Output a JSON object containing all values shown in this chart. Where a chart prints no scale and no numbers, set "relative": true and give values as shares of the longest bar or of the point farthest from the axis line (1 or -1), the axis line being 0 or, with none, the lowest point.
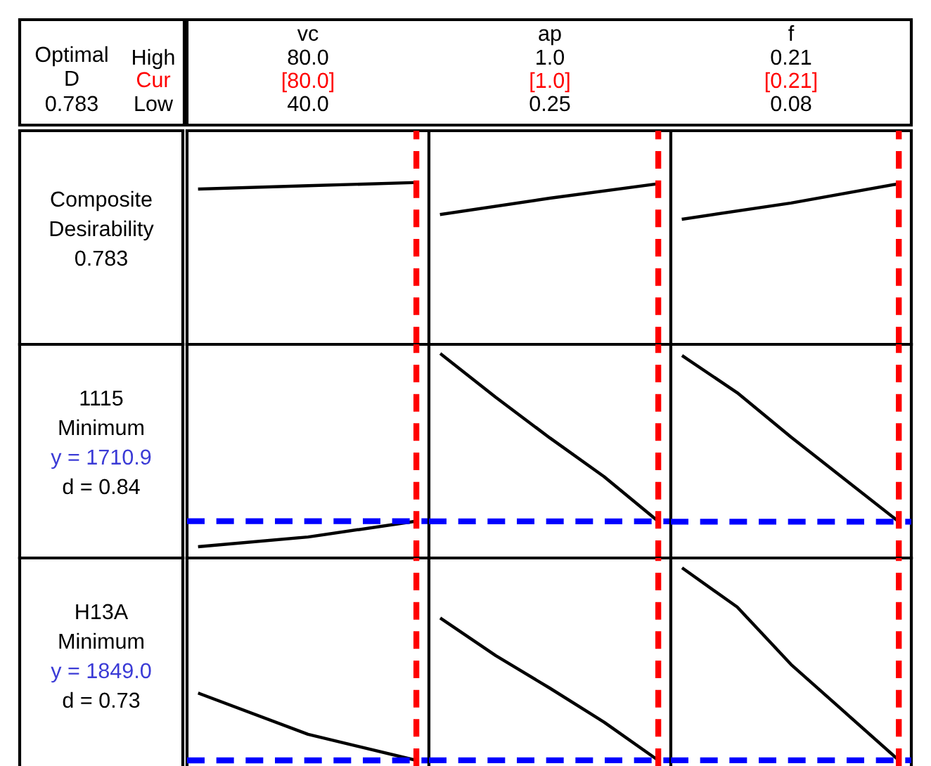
{
  "chart_data": [
    {
      "type": "other",
      "annotations": [
        "Optimal",
        "D",
        "0.783",
        "High",
        "Cur",
        "Low"
      ]
    },
    {
      "type": "other",
      "annotations": [
        "Composite",
        "Desirability",
        "0.783"
      ]
    },
    {
      "type": "other",
      "annotations": [
        "1115",
        "Minimum",
        "y = 1710.9",
        "d = 0.84"
      ]
    },
    {
      "type": "other",
      "annotations": [
        "H13A",
        "Minimum",
        "y = 1849.0",
        "d = 0.73"
      ]
    },
    {
      "type": "line",
      "relative": true,
      "title": "vc",
      "annotations": [
        "80.0",
        "[80.0]",
        "40.0"
      ],
      "categories": [
        null,
        null,
        null
      ],
      "series": [
        {
          "color": "#000000",
          "values": [
            0.96,
            0.98,
            1.0
          ]
        }
      ]
    },
    {
      "type": "line",
      "relative": true,
      "title": "ap",
      "annotations": [
        "1.0",
        "[1.0]",
        "0.25"
      ],
      "categories": [
        null,
        null,
        null
      ],
      "series": [
        {
          "color": "#000000",
          "values": [
            0.81,
            0.91,
            1.0
          ]
        }
      ]
    },
    {
      "type": "line",
      "relative": true,
      "title": "f",
      "annotations": [
        "0.21",
        "[0.21]",
        "0.08"
      ],
      "categories": [
        null,
        null,
        null
      ],
      "series": [
        {
          "color": "#000000",
          "values": [
            0.78,
            0.88,
            1.0
          ]
        }
      ]
    },
    {
      "type": "line",
      "relative": true,
      "categories": [
        null,
        null,
        null
      ],
      "series": [
        {
          "color": "#000000",
          "values": [
            0.31,
            0.57,
            1.0
          ]
        }
      ],
      "ref_lines": [
        {
          "axis": "y",
          "value": 1.0,
          "color": "#0000ff",
          "line_style": "dashed"
        }
      ]
    },
    {
      "type": "line",
      "relative": true,
      "categories": [
        null,
        null,
        null,
        null,
        null
      ],
      "series": [
        {
          "color": "#000000",
          "values": [
            1.0,
            0.79,
            0.59,
            0.4,
            0.18
          ]
        }
      ],
      "ref_lines": [
        {
          "axis": "y",
          "value": 0.18,
          "color": "#0000ff",
          "line_style": "dashed"
        }
      ]
    },
    {
      "type": "line",
      "relative": true,
      "categories": [
        null,
        null,
        null,
        null,
        null
      ],
      "series": [
        {
          "color": "#000000",
          "values": [
            1.0,
            0.82,
            0.6,
            0.39,
            0.18
          ]
        }
      ],
      "ref_lines": [
        {
          "axis": "y",
          "value": 0.18,
          "color": "#0000ff",
          "line_style": "dashed"
        }
      ]
    },
    {
      "type": "line",
      "relative": true,
      "categories": [
        null,
        null,
        null
      ],
      "series": [
        {
          "color": "#000000",
          "values": [
            1.0,
            0.39,
            0.0
          ]
        }
      ],
      "ref_lines": [
        {
          "axis": "y",
          "value": 0.0,
          "color": "#0000ff",
          "line_style": "dashed"
        }
      ]
    },
    {
      "type": "line",
      "relative": true,
      "categories": [
        null,
        null,
        null,
        null,
        null
      ],
      "series": [
        {
          "color": "#000000",
          "values": [
            1.0,
            0.74,
            0.51,
            0.27,
            0.0
          ]
        }
      ],
      "ref_lines": [
        {
          "axis": "y",
          "value": 0.0,
          "color": "#0000ff",
          "line_style": "dashed"
        }
      ]
    },
    {
      "type": "line",
      "relative": true,
      "categories": [
        null,
        null,
        null,
        null,
        null
      ],
      "series": [
        {
          "color": "#000000",
          "values": [
            1.0,
            0.8,
            0.5,
            0.25,
            0.0
          ]
        }
      ],
      "ref_lines": [
        {
          "axis": "y",
          "value": 0.0,
          "color": "#0000ff",
          "line_style": "dashed"
        }
      ]
    }
  ]
}
